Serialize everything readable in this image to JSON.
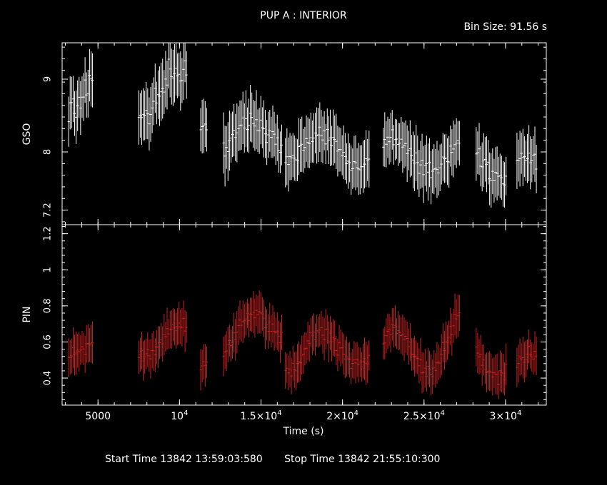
{
  "header": {
    "title": "PUP A : INTERIOR",
    "bin_size": "Bin Size: 91.56 s"
  },
  "footer": {
    "start_time": "Start Time 13842 13:59:03:580",
    "stop_time": "Stop Time 13842 21:55:10:300"
  },
  "chart_data": {
    "type": "scatter",
    "xlabel": "Time (s)",
    "xlim": [
      2800,
      32500
    ],
    "x_ticks": [
      {
        "value": 5000,
        "label": "5000"
      },
      {
        "value": 10000,
        "label": "10",
        "exp": "4"
      },
      {
        "value": 15000,
        "label": "1.5×10",
        "exp": "4"
      },
      {
        "value": 20000,
        "label": "2×10",
        "exp": "4"
      },
      {
        "value": 25000,
        "label": "2.5×10",
        "exp": "4"
      },
      {
        "value": 30000,
        "label": "3×10",
        "exp": "4"
      }
    ],
    "panels": [
      {
        "name": "GSO",
        "ylabel": "GSO",
        "ylim": [
          7.0,
          9.5
        ],
        "y_ticks": [
          {
            "value": 7.2,
            "label": "7.2"
          },
          {
            "value": 8,
            "label": "8"
          },
          {
            "value": 9,
            "label": "9"
          }
        ],
        "color": "#ffffff",
        "segments": [
          {
            "start": 3200,
            "end": 4700,
            "mean": 8.95,
            "amp": 0.35,
            "noise": 0.3,
            "err": 0.32,
            "trend": 0.0
          },
          {
            "start": 7500,
            "end": 10500,
            "mean": 8.8,
            "amp": 0.3,
            "noise": 0.28,
            "err": 0.35,
            "trend": 0.0
          },
          {
            "start": 11300,
            "end": 11700,
            "mean": 8.45,
            "amp": 0.1,
            "noise": 0.2,
            "err": 0.35,
            "trend": 0.0
          },
          {
            "start": 12700,
            "end": 16300,
            "mean": 8.15,
            "amp": 0.2,
            "noise": 0.18,
            "err": 0.35,
            "trend": 0.15
          },
          {
            "start": 16500,
            "end": 21700,
            "mean": 8.1,
            "amp": 0.2,
            "noise": 0.18,
            "err": 0.33,
            "trend": -0.1
          },
          {
            "start": 22500,
            "end": 27200,
            "mean": 7.95,
            "amp": 0.22,
            "noise": 0.18,
            "err": 0.33,
            "trend": 0.0
          },
          {
            "start": 28200,
            "end": 30100,
            "mean": 7.85,
            "amp": 0.2,
            "noise": 0.18,
            "err": 0.33,
            "trend": 0.0
          },
          {
            "start": 30700,
            "end": 31900,
            "mean": 7.85,
            "amp": 0.25,
            "noise": 0.18,
            "err": 0.33,
            "trend": -0.25
          }
        ]
      },
      {
        "name": "PIN",
        "ylabel": "PIN",
        "ylim": [
          0.25,
          1.25
        ],
        "y_ticks": [
          {
            "value": 0.4,
            "label": "0.4"
          },
          {
            "value": 0.6,
            "label": "0.6"
          },
          {
            "value": 0.8,
            "label": "0.8"
          },
          {
            "value": 1,
            "label": "1"
          },
          {
            "value": 1.2,
            "label": "1.2"
          }
        ],
        "color": "#cc2222",
        "segments": [
          {
            "start": 3200,
            "end": 4700,
            "mean": 0.58,
            "amp": 0.05,
            "noise": 0.06,
            "err": 0.1,
            "trend": 0.0
          },
          {
            "start": 7500,
            "end": 10500,
            "mean": 0.56,
            "amp": 0.06,
            "noise": 0.06,
            "err": 0.1,
            "trend": 0.08
          },
          {
            "start": 11300,
            "end": 11700,
            "mean": 0.5,
            "amp": 0.05,
            "noise": 0.05,
            "err": 0.1,
            "trend": 0.0
          },
          {
            "start": 12700,
            "end": 16300,
            "mean": 0.58,
            "amp": 0.1,
            "noise": 0.06,
            "err": 0.1,
            "trend": 0.15
          },
          {
            "start": 16500,
            "end": 21700,
            "mean": 0.53,
            "amp": 0.1,
            "noise": 0.06,
            "err": 0.1,
            "trend": 0.05
          },
          {
            "start": 22500,
            "end": 27200,
            "mean": 0.52,
            "amp": 0.14,
            "noise": 0.06,
            "err": 0.1,
            "trend": 0.1
          },
          {
            "start": 28200,
            "end": 30100,
            "mean": 0.48,
            "amp": 0.15,
            "noise": 0.06,
            "err": 0.1,
            "trend": 0.1
          },
          {
            "start": 30700,
            "end": 31900,
            "mean": 0.5,
            "amp": 0.08,
            "noise": 0.06,
            "err": 0.1,
            "trend": -0.05
          }
        ]
      }
    ]
  }
}
